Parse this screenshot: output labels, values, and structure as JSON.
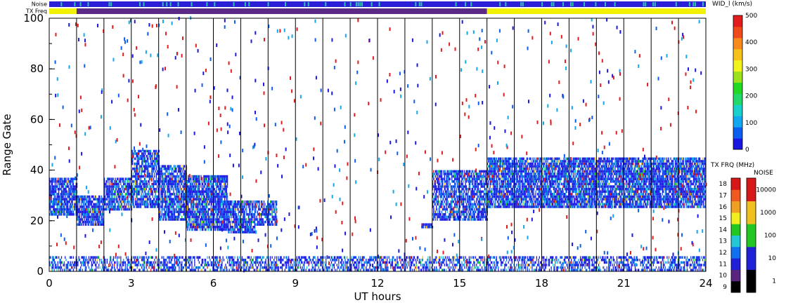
{
  "chart_data": {
    "type": "heatmap",
    "title": "",
    "xlabel": "UT hours",
    "ylabel": "Range Gate",
    "xlim": [
      0,
      24
    ],
    "ylim": [
      0,
      100
    ],
    "x_ticks": [
      "0",
      "3",
      "6",
      "9",
      "12",
      "15",
      "18",
      "21",
      "24"
    ],
    "y_ticks": [
      "0",
      "20",
      "40",
      "60",
      "80",
      "100"
    ],
    "top_strips": [
      {
        "label": "Noise",
        "segments": [
          {
            "start": 0,
            "end": 24,
            "color": "#2a1fd6",
            "speckle": "#2fc2b0"
          }
        ]
      },
      {
        "label": "TX Freq",
        "segments": [
          {
            "start": 0,
            "end": 1,
            "color": "#f2f200"
          },
          {
            "start": 1,
            "end": 16,
            "color": "#5b2a86"
          },
          {
            "start": 16,
            "end": 24,
            "color": "#f2f200"
          }
        ]
      }
    ],
    "scan_boundaries_ut": [
      1,
      2,
      3,
      4,
      5,
      6,
      7,
      8,
      9,
      10,
      11,
      12,
      13,
      14,
      15,
      16,
      17,
      18,
      19,
      20,
      21,
      22,
      23
    ],
    "scatter_regions": [
      {
        "ut": [
          0,
          1
        ],
        "gate": [
          22,
          37
        ],
        "density": 0.85
      },
      {
        "ut": [
          1,
          2
        ],
        "gate": [
          18,
          30
        ],
        "density": 0.85
      },
      {
        "ut": [
          2,
          3
        ],
        "gate": [
          24,
          37
        ],
        "density": 0.8
      },
      {
        "ut": [
          3,
          4
        ],
        "gate": [
          25,
          48
        ],
        "density": 0.75
      },
      {
        "ut": [
          4,
          5
        ],
        "gate": [
          20,
          42
        ],
        "density": 0.8
      },
      {
        "ut": [
          5,
          6.5
        ],
        "gate": [
          16,
          38
        ],
        "density": 0.85
      },
      {
        "ut": [
          6.5,
          7.5
        ],
        "gate": [
          15,
          28
        ],
        "density": 0.8
      },
      {
        "ut": [
          7.5,
          8.3
        ],
        "gate": [
          18,
          28
        ],
        "density": 0.75
      },
      {
        "ut": [
          13.6,
          14.0
        ],
        "gate": [
          17,
          19
        ],
        "density": 0.95
      },
      {
        "ut": [
          14,
          16
        ],
        "gate": [
          20,
          40
        ],
        "density": 0.75
      },
      {
        "ut": [
          16,
          24
        ],
        "gate": [
          25,
          45
        ],
        "density": 0.85
      },
      {
        "ut": [
          0,
          24
        ],
        "gate": [
          0,
          6
        ],
        "density": 0.55
      }
    ],
    "colorbars": [
      {
        "title": "WID_l (km/s)",
        "ticks": [
          "0",
          "100",
          "200",
          "300",
          "400",
          "500"
        ],
        "colors": [
          "#1a18e0",
          "#0c5ef0",
          "#12a7ee",
          "#19d0cc",
          "#22d86a",
          "#22d822",
          "#9be21c",
          "#f2f21c",
          "#f7c11c",
          "#f78a1c",
          "#ef4a1c",
          "#e01c1c"
        ]
      },
      {
        "title": "TX FRQ (MHz)",
        "ticks": [
          "9",
          "10",
          "11",
          "12",
          "13",
          "14",
          "15",
          "16",
          "17",
          "18"
        ],
        "colors": [
          "#000000",
          "#5a2580",
          "#2020d8",
          "#1070f0",
          "#22c8d8",
          "#22c822",
          "#f0f020",
          "#f0a020",
          "#f05a20",
          "#d81818"
        ]
      },
      {
        "title": "NOISE",
        "ticks": [
          "1",
          "10",
          "100",
          "1000",
          "10000"
        ],
        "colors": [
          "#000000",
          "#2020d8",
          "#22c822",
          "#f0c020",
          "#d81818"
        ]
      }
    ]
  }
}
